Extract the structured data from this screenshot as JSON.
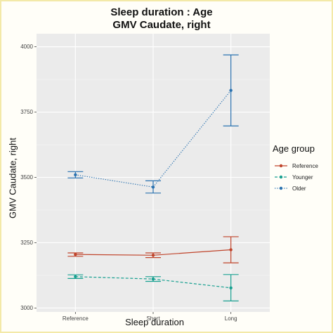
{
  "chart_data": {
    "type": "line",
    "title_line1": "Sleep duration : Age",
    "title_line2": "GMV Caudate, right",
    "xlabel": "Sleep duration",
    "ylabel": "GMV Caudate, right",
    "categories": [
      "Reference",
      "Short",
      "Long"
    ],
    "ylim": [
      2985,
      4050
    ],
    "yticks": [
      3000,
      3250,
      3500,
      3750,
      4000
    ],
    "grid": true,
    "legend_title": "Age group",
    "legend_position": "right",
    "series": [
      {
        "name": "Reference",
        "color": "#c0442b",
        "linestyle": "solid",
        "values": [
          3205,
          3202,
          3223
        ],
        "lower": [
          3198,
          3193,
          3173
        ],
        "upper": [
          3211,
          3211,
          3273
        ]
      },
      {
        "name": "Younger",
        "color": "#17a090",
        "linestyle": "dashed",
        "values": [
          3120,
          3111,
          3077
        ],
        "lower": [
          3113,
          3102,
          3027
        ],
        "upper": [
          3127,
          3120,
          3128
        ]
      },
      {
        "name": "Older",
        "color": "#2a72b0",
        "linestyle": "dotted",
        "values": [
          3510,
          3463,
          3833
        ],
        "lower": [
          3498,
          3440,
          3697
        ],
        "upper": [
          3522,
          3487,
          3969
        ]
      }
    ]
  }
}
